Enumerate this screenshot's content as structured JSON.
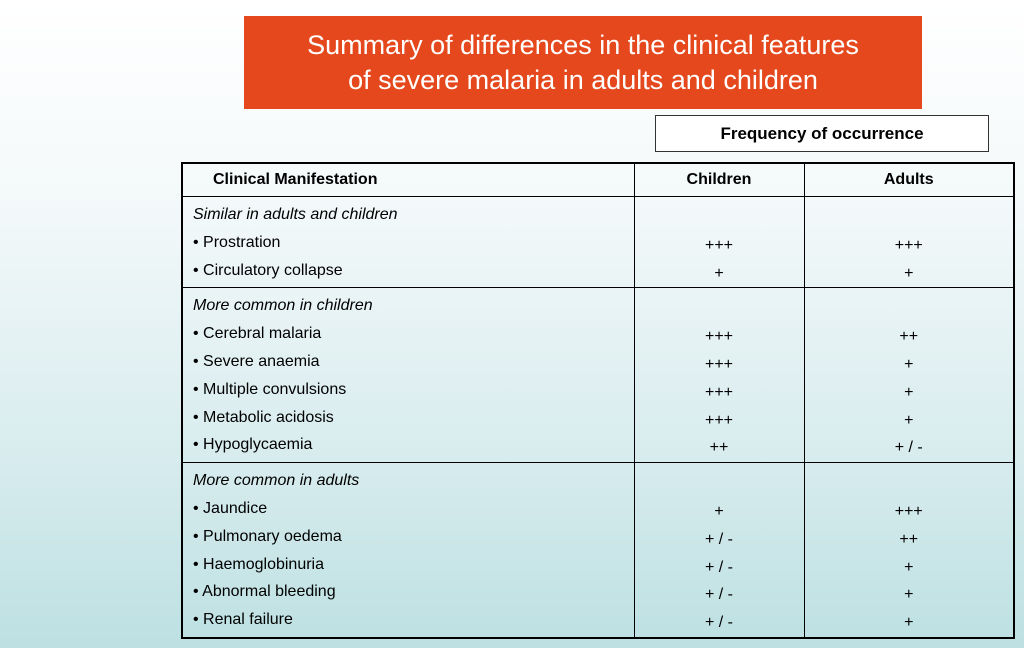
{
  "title": "Summary of differences in the clinical features\nof severe malaria in adults and children",
  "frequency_header": "Frequency of occurrence",
  "columns": {
    "manifestation": "Clinical Manifestation",
    "children": "Children",
    "adults": "Adults"
  },
  "groups": [
    {
      "title": "Similar in adults and children",
      "rows": [
        {
          "label": "• Prostration",
          "children": "+++",
          "adults": "+++"
        },
        {
          "label": "• Circulatory collapse",
          "children": "+",
          "adults": "+"
        }
      ]
    },
    {
      "title": "More common in children",
      "rows": [
        {
          "label": "• Cerebral malaria",
          "children": "+++",
          "adults": "++"
        },
        {
          "label": "• Severe anaemia",
          "children": "+++",
          "adults": "+"
        },
        {
          "label": "• Multiple convulsions",
          "children": "+++",
          "adults": "+"
        },
        {
          "label": "• Metabolic acidosis",
          "children": "+++",
          "adults": "+"
        },
        {
          "label": "• Hypoglycaemia",
          "children": "++",
          "adults": "+ / -"
        }
      ]
    },
    {
      "title": "More common in adults",
      "rows": [
        {
          "label": "• Jaundice",
          "children": "+",
          "adults": "+++"
        },
        {
          "label": "• Pulmonary oedema",
          "children": "+ / -",
          "adults": "++"
        },
        {
          "label": "• Haemoglobinuria",
          "children": "+ / -",
          "adults": "+"
        },
        {
          "label": "• Abnormal bleeding",
          "children": "+ / -",
          "adults": "+"
        },
        {
          "label": "• Renal failure",
          "children": "+ / -",
          "adults": "+"
        }
      ]
    }
  ]
}
